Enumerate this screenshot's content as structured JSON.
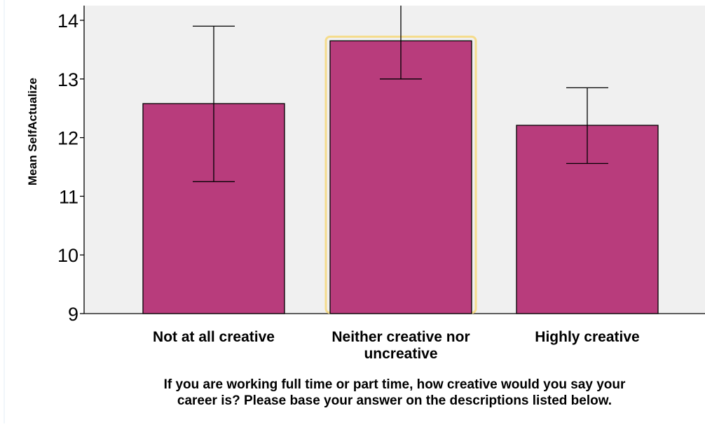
{
  "chart_data": {
    "type": "bar",
    "categories": [
      "Not at all creative",
      "Neither creative nor uncreative",
      "Highly creative"
    ],
    "category_label_lines": [
      [
        "Not at all creative"
      ],
      [
        "Neither creative nor",
        "uncreative"
      ],
      [
        "Highly creative"
      ]
    ],
    "values": [
      12.58,
      13.65,
      12.21
    ],
    "error_bars": [
      {
        "low": 11.25,
        "high": 13.9
      },
      {
        "low": 13.0,
        "high": 14.4
      },
      {
        "low": 11.56,
        "high": 12.85
      }
    ],
    "ylabel": "Mean SelfActualize",
    "xlabel_lines": [
      "If you are working full time or part time, how creative would you say your",
      "career is?  Please base your answer on the descriptions listed below."
    ],
    "ylim": [
      9,
      14.2
    ],
    "yticks": [
      9,
      10,
      11,
      12,
      13,
      14
    ],
    "highlighted_index": 1,
    "colors": {
      "bar": "#b83c7c",
      "plot_background": "#f0f0f0",
      "highlight": "#f5dc8c",
      "axis": "#000000"
    }
  }
}
